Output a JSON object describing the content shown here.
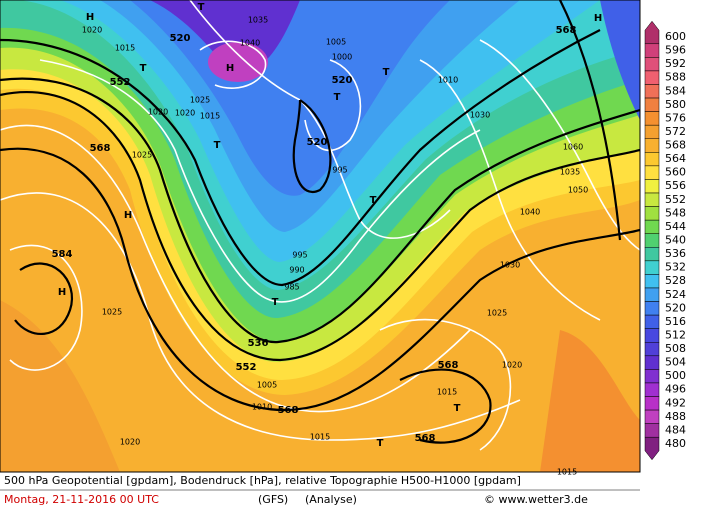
{
  "map": {
    "labels": [
      "520",
      "552",
      "568",
      "584",
      "536",
      "552",
      "568",
      "568",
      "568",
      "520",
      "520",
      "568",
      "H",
      "H",
      "H",
      "H",
      "H",
      "T",
      "T",
      "T",
      "T",
      "T",
      "T",
      "T",
      "T",
      "T"
    ],
    "pressure_labels": [
      "1020",
      "1015",
      "1015",
      "1025",
      "1020",
      "1025",
      "1015",
      "1020",
      "1025",
      "995",
      "990",
      "985",
      "1005",
      "1000",
      "995",
      "1010",
      "1030",
      "1035",
      "1040",
      "1060",
      "1050",
      "1040",
      "1035",
      "1030",
      "1025",
      "1020",
      "1015",
      "1010",
      "1005",
      "1020",
      "1015"
    ]
  },
  "legend": {
    "values": [
      600,
      596,
      592,
      588,
      584,
      580,
      576,
      572,
      568,
      564,
      560,
      556,
      552,
      548,
      544,
      540,
      536,
      532,
      528,
      524,
      520,
      516,
      512,
      508,
      504,
      500,
      496,
      492,
      488,
      484,
      480
    ],
    "colors": [
      "#b0306a",
      "#d0407a",
      "#e0507a",
      "#f06070",
      "#f07058",
      "#f08040",
      "#f49030",
      "#f4a030",
      "#f8b030",
      "#fcc830",
      "#ffe040",
      "#f0f040",
      "#c8e840",
      "#a0e040",
      "#70d850",
      "#50d070",
      "#40c8a0",
      "#40d0d0",
      "#40c0f0",
      "#40a0f0",
      "#4080f0",
      "#4060e8",
      "#4848e0",
      "#5040d8",
      "#6030d0",
      "#8030d0",
      "#a030d0",
      "#b830c8",
      "#c040c0",
      "#a030a0",
      "#802080"
    ]
  },
  "footer": {
    "line1": "500 hPa Geopotential [gpdam], Bodendruck [hPa], relative Topographie H500-H1000 [gpdam]",
    "date": "Montag, 21-11-2016  00 UTC",
    "model": "(GFS)",
    "run": "(Analyse)",
    "credit": "© www.wetter3.de"
  }
}
